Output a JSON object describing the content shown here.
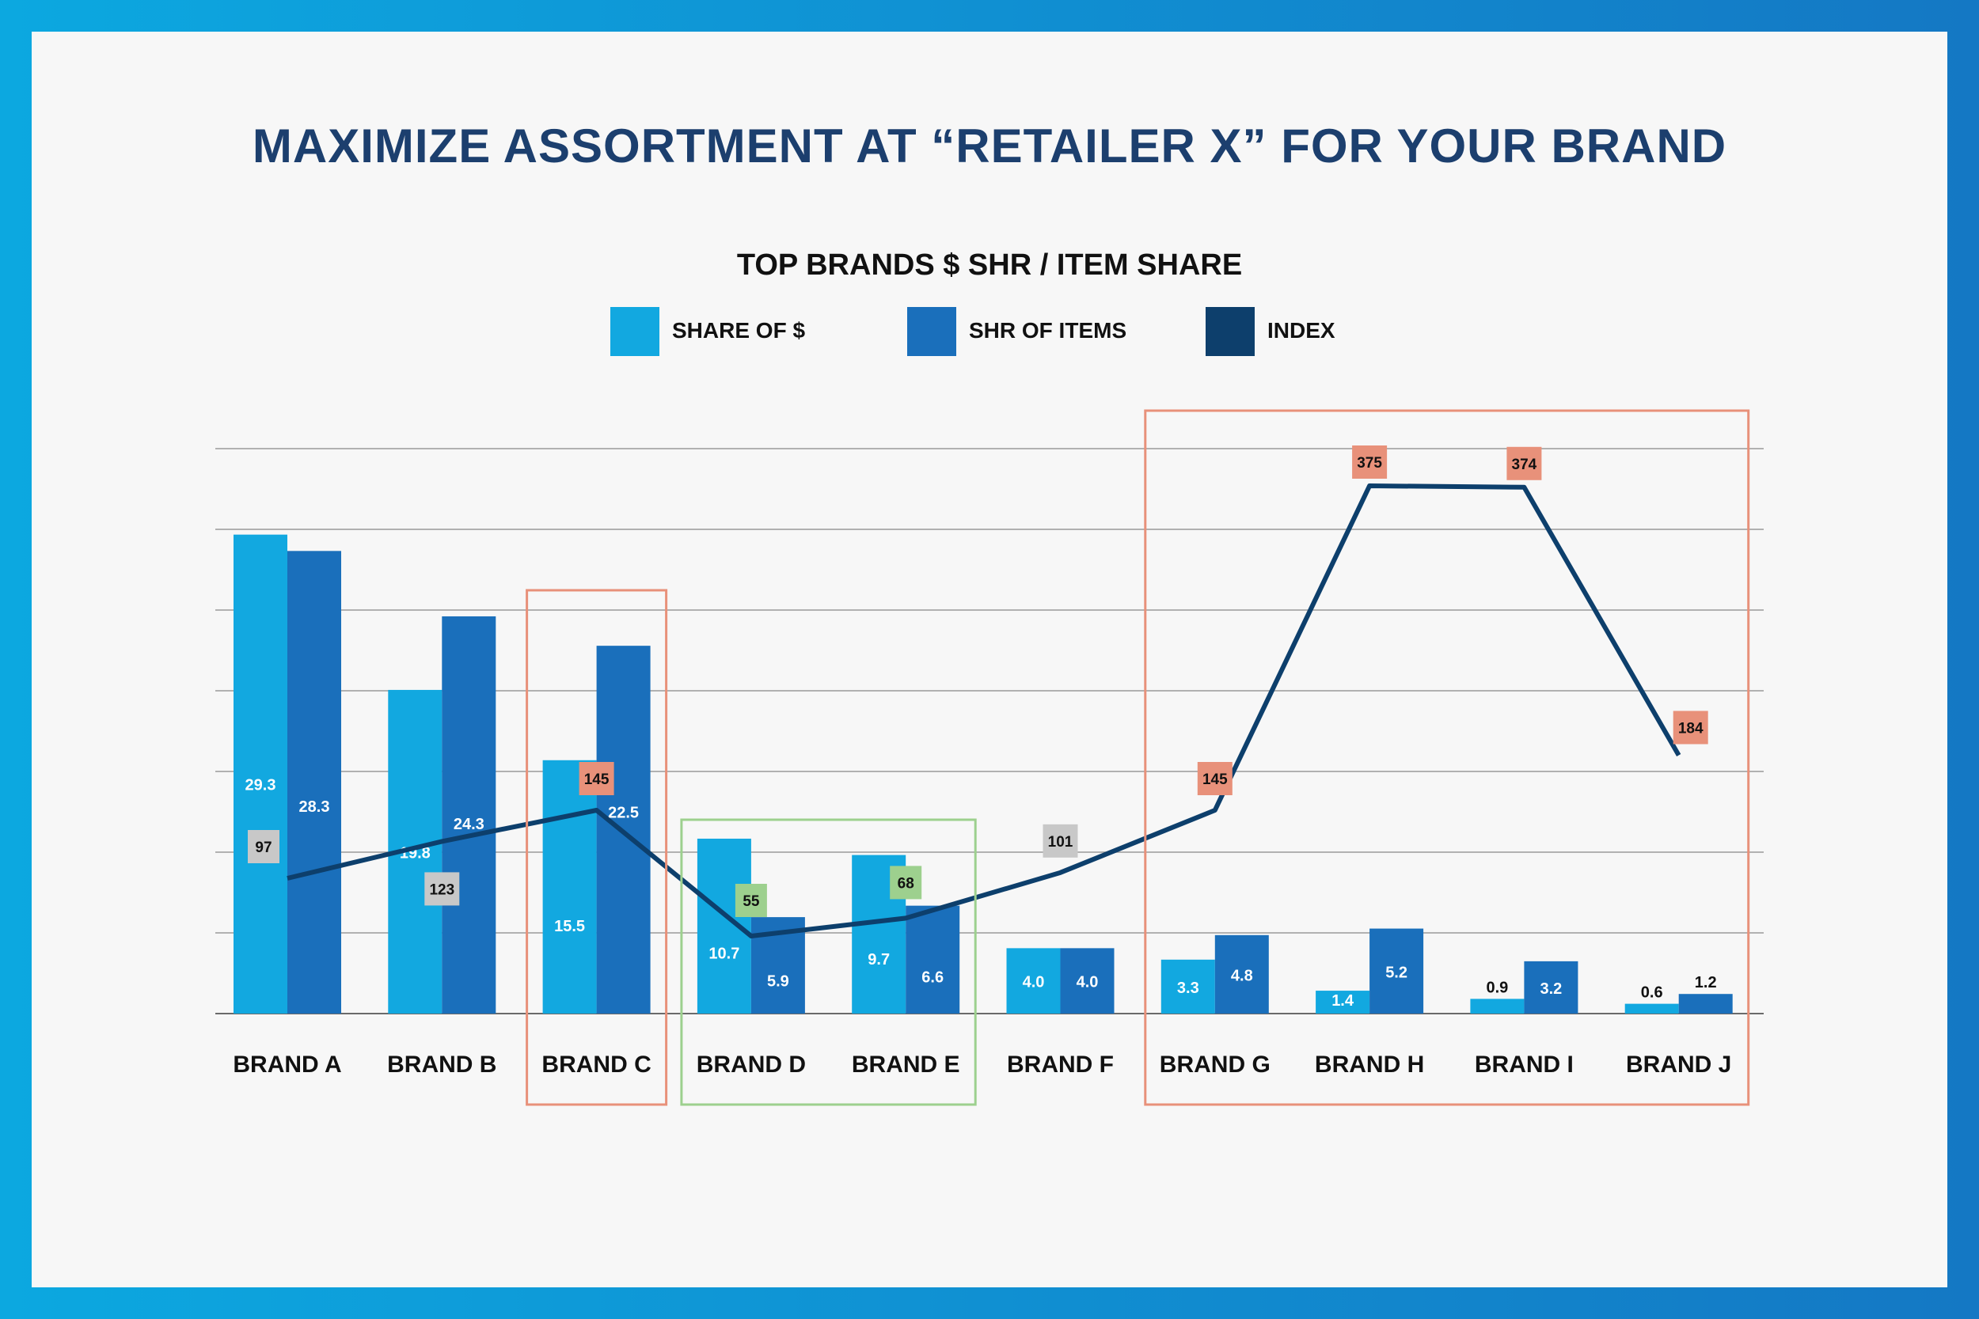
{
  "title": "MAXIMIZE ASSORTMENT AT “RETAILER X” FOR YOUR BRAND",
  "colors": {
    "share_of_dollars": "#12a8e0",
    "share_of_items": "#1a6fbb",
    "index": "#0d3f6c",
    "highlight_high": "#e8917a",
    "highlight_low": "#9dd08e",
    "label_neutral": "#c8c8c8"
  },
  "chart_data": {
    "type": "bar",
    "title": "TOP BRANDS $ SHR / ITEM SHARE",
    "categories": [
      "BRAND A",
      "BRAND B",
      "BRAND C",
      "BRAND D",
      "BRAND E",
      "BRAND F",
      "BRAND G",
      "BRAND H",
      "BRAND I",
      "BRAND J"
    ],
    "series": [
      {
        "name": "SHARE OF $",
        "type": "bar",
        "values": [
          29.3,
          19.8,
          15.5,
          10.7,
          9.7,
          4.0,
          3.3,
          1.4,
          0.9,
          0.6
        ]
      },
      {
        "name": "SHR OF ITEMS",
        "type": "bar",
        "values": [
          28.3,
          24.3,
          22.5,
          5.9,
          6.6,
          4.0,
          4.8,
          5.2,
          3.2,
          1.2
        ]
      },
      {
        "name": "INDEX",
        "type": "line",
        "values": [
          97,
          123,
          145,
          55,
          68,
          101,
          145,
          375,
          374,
          184
        ]
      }
    ],
    "index_label_styles": [
      "neutral",
      "neutral",
      "high",
      "low",
      "low",
      "neutral",
      "high",
      "high",
      "high",
      "high"
    ],
    "highlight_groups": [
      {
        "categories": [
          "BRAND C"
        ],
        "style": "high"
      },
      {
        "categories": [
          "BRAND D",
          "BRAND E"
        ],
        "style": "low"
      },
      {
        "categories": [
          "BRAND G",
          "BRAND H",
          "BRAND I",
          "BRAND J"
        ],
        "style": "high"
      }
    ],
    "ylim": [
      0,
      35
    ],
    "grid": true,
    "xlabel": "",
    "ylabel": ""
  }
}
